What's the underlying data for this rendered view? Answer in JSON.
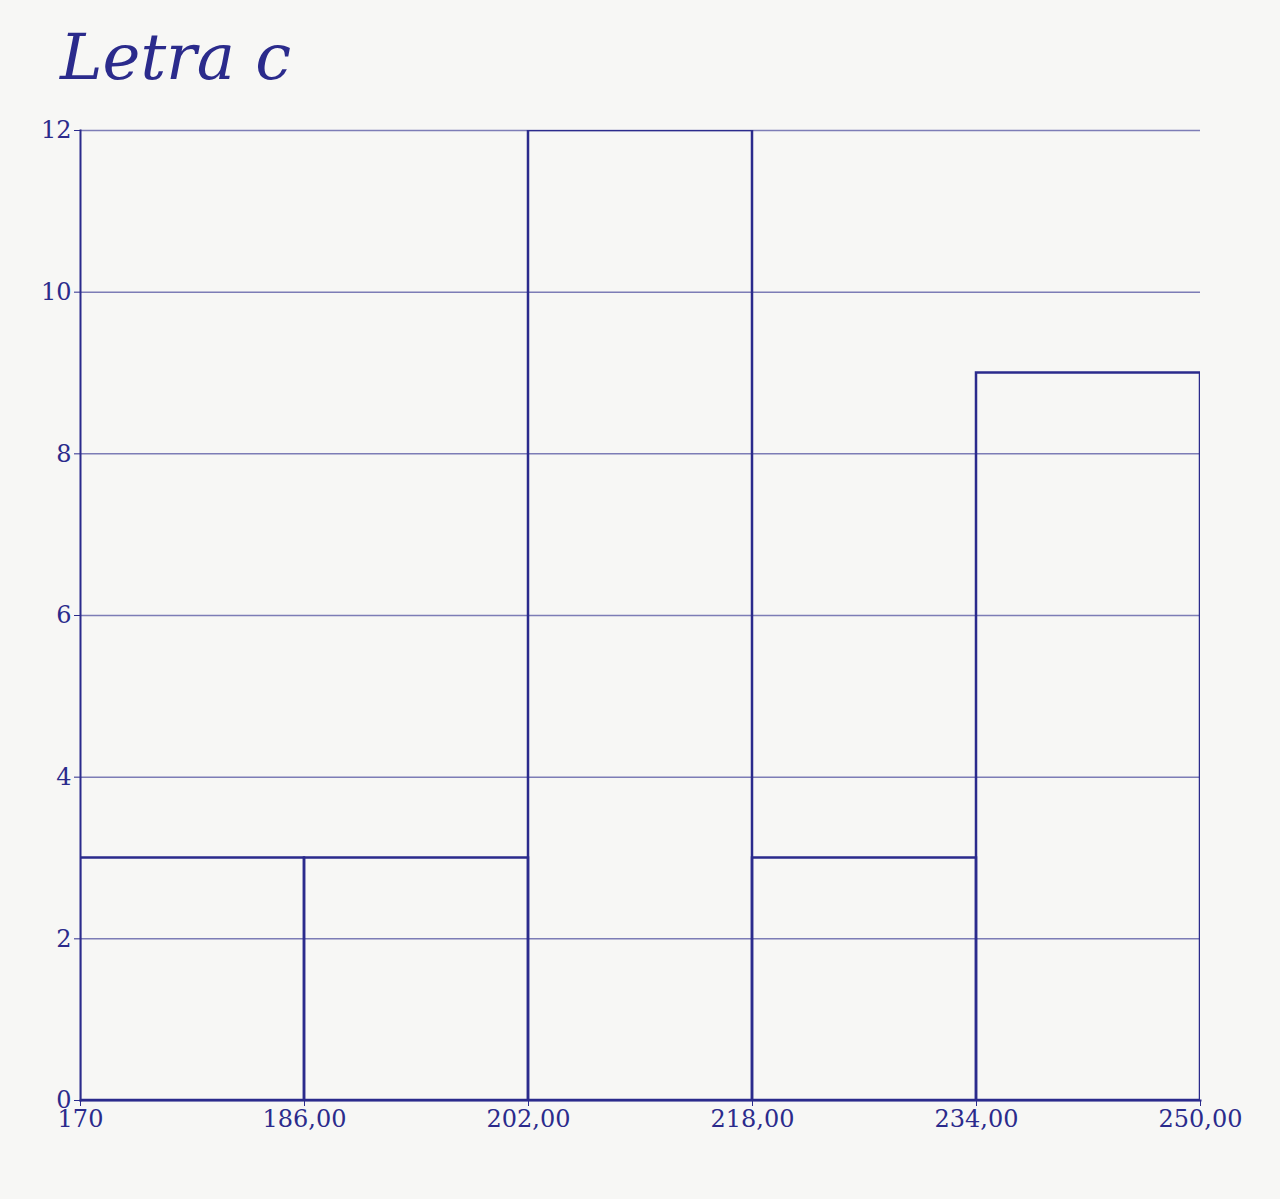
{
  "chart_data": {
    "type": "histogram",
    "title": "Letra c",
    "bins": [
      170,
      186,
      202,
      218,
      234,
      250
    ],
    "values": [
      3,
      3,
      12,
      3,
      9
    ],
    "color": "#2b2b8c",
    "xlim": [
      170,
      250
    ],
    "xticks": [
      170,
      {
        "value": 186,
        "label": "186,00"
      },
      {
        "value": 202,
        "label": "202,00"
      },
      {
        "value": 218,
        "label": "218,00"
      },
      {
        "value": 234,
        "label": "234,00"
      },
      {
        "value": 250,
        "label": "250,00"
      }
    ],
    "ylim": [
      0,
      12
    ],
    "yticks": [
      0,
      2,
      4,
      6,
      8,
      10,
      12
    ],
    "grid": true
  }
}
